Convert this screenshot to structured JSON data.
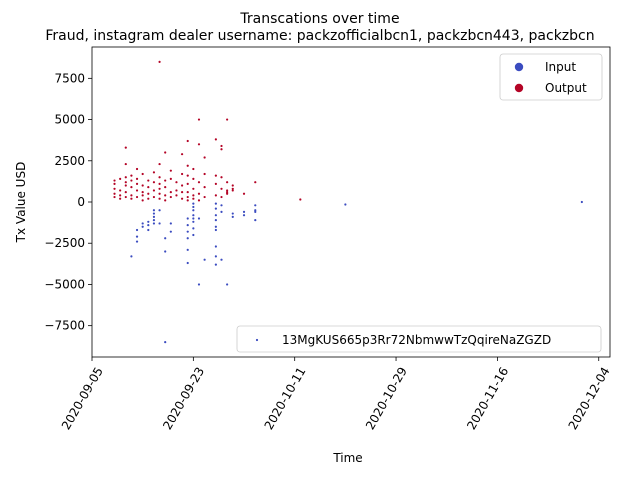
{
  "chart_data": {
    "type": "scatter",
    "title": "Transcations over time",
    "subtitle": "Fraud, instagram dealer username: packzofficialbcn1, packzbcn443, packzbcn",
    "xlabel": "Time",
    "ylabel": "Tx Value USD",
    "xlim": [
      "2020-09-05",
      "2020-12-06"
    ],
    "ylim": [
      -9400,
      9400
    ],
    "xticks": [
      "2020-09-05",
      "2020-09-23",
      "2020-10-11",
      "2020-10-29",
      "2020-11-16",
      "2020-12-04"
    ],
    "yticks": [
      -7500,
      -5000,
      -2500,
      0,
      2500,
      5000,
      7500
    ],
    "ytick_labels": [
      "−7500",
      "−5000",
      "−2500",
      "0",
      "2500",
      "5000",
      "7500"
    ],
    "legend_upper": {
      "placement": "top-right",
      "entries": [
        {
          "label": "Input",
          "color": "#3b4cc0"
        },
        {
          "label": "Output",
          "color": "#b40426"
        }
      ]
    },
    "legend_lower": {
      "placement": "bottom-right",
      "label": "13MgKUS665p3Rr72NbmwwTzQqireNaZGZD"
    },
    "colors": {
      "input": "#3b4cc0",
      "output": "#b40426"
    },
    "series": [
      {
        "name": "Output",
        "color": "#b40426",
        "points": [
          [
            "2020-09-09",
            1300
          ],
          [
            "2020-09-09",
            1100
          ],
          [
            "2020-09-09",
            800
          ],
          [
            "2020-09-09",
            500
          ],
          [
            "2020-09-09",
            300
          ],
          [
            "2020-09-10",
            1400
          ],
          [
            "2020-09-10",
            700
          ],
          [
            "2020-09-10",
            400
          ],
          [
            "2020-09-10",
            200
          ],
          [
            "2020-09-11",
            3300
          ],
          [
            "2020-09-11",
            2300
          ],
          [
            "2020-09-11",
            1500
          ],
          [
            "2020-09-11",
            1200
          ],
          [
            "2020-09-11",
            1000
          ],
          [
            "2020-09-11",
            600
          ],
          [
            "2020-09-11",
            300
          ],
          [
            "2020-09-12",
            1600
          ],
          [
            "2020-09-12",
            1300
          ],
          [
            "2020-09-12",
            900
          ],
          [
            "2020-09-12",
            400
          ],
          [
            "2020-09-12",
            200
          ],
          [
            "2020-09-13",
            2000
          ],
          [
            "2020-09-13",
            1400
          ],
          [
            "2020-09-13",
            1100
          ],
          [
            "2020-09-13",
            700
          ],
          [
            "2020-09-13",
            300
          ],
          [
            "2020-09-14",
            1700
          ],
          [
            "2020-09-14",
            1000
          ],
          [
            "2020-09-14",
            600
          ],
          [
            "2020-09-14",
            400
          ],
          [
            "2020-09-14",
            100
          ],
          [
            "2020-09-15",
            1300
          ],
          [
            "2020-09-15",
            900
          ],
          [
            "2020-09-15",
            500
          ],
          [
            "2020-09-15",
            200
          ],
          [
            "2020-09-16",
            1800
          ],
          [
            "2020-09-16",
            1200
          ],
          [
            "2020-09-16",
            700
          ],
          [
            "2020-09-16",
            300
          ],
          [
            "2020-09-17",
            8500
          ],
          [
            "2020-09-17",
            2300
          ],
          [
            "2020-09-17",
            1500
          ],
          [
            "2020-09-17",
            1100
          ],
          [
            "2020-09-17",
            800
          ],
          [
            "2020-09-17",
            500
          ],
          [
            "2020-09-17",
            200
          ],
          [
            "2020-09-18",
            3000
          ],
          [
            "2020-09-18",
            1300
          ],
          [
            "2020-09-18",
            900
          ],
          [
            "2020-09-18",
            400
          ],
          [
            "2020-09-18",
            100
          ],
          [
            "2020-09-19",
            1900
          ],
          [
            "2020-09-19",
            1400
          ],
          [
            "2020-09-19",
            600
          ],
          [
            "2020-09-19",
            300
          ],
          [
            "2020-09-20",
            1200
          ],
          [
            "2020-09-20",
            700
          ],
          [
            "2020-09-20",
            400
          ],
          [
            "2020-09-21",
            2900
          ],
          [
            "2020-09-21",
            1700
          ],
          [
            "2020-09-21",
            1000
          ],
          [
            "2020-09-21",
            600
          ],
          [
            "2020-09-21",
            200
          ],
          [
            "2020-09-22",
            3700
          ],
          [
            "2020-09-22",
            2200
          ],
          [
            "2020-09-22",
            1600
          ],
          [
            "2020-09-22",
            1100
          ],
          [
            "2020-09-22",
            600
          ],
          [
            "2020-09-22",
            300
          ],
          [
            "2020-09-22",
            100
          ],
          [
            "2020-09-23",
            2000
          ],
          [
            "2020-09-23",
            1400
          ],
          [
            "2020-09-23",
            800
          ],
          [
            "2020-09-23",
            400
          ],
          [
            "2020-09-23",
            200
          ],
          [
            "2020-09-24",
            5000
          ],
          [
            "2020-09-24",
            3500
          ],
          [
            "2020-09-24",
            1200
          ],
          [
            "2020-09-24",
            500
          ],
          [
            "2020-09-24",
            100
          ],
          [
            "2020-09-25",
            2700
          ],
          [
            "2020-09-25",
            1700
          ],
          [
            "2020-09-25",
            900
          ],
          [
            "2020-09-25",
            300
          ],
          [
            "2020-09-27",
            3800
          ],
          [
            "2020-09-27",
            1600
          ],
          [
            "2020-09-27",
            1100
          ],
          [
            "2020-09-27",
            400
          ],
          [
            "2020-09-28",
            3400
          ],
          [
            "2020-09-28",
            3200
          ],
          [
            "2020-09-28",
            1500
          ],
          [
            "2020-09-28",
            800
          ],
          [
            "2020-09-28",
            300
          ],
          [
            "2020-09-29",
            5000
          ],
          [
            "2020-09-29",
            1200
          ],
          [
            "2020-09-29",
            700
          ],
          [
            "2020-09-29",
            600
          ],
          [
            "2020-09-29",
            500
          ],
          [
            "2020-09-30",
            1000
          ],
          [
            "2020-09-30",
            800
          ],
          [
            "2020-09-30",
            700
          ],
          [
            "2020-10-02",
            500
          ],
          [
            "2020-10-04",
            1200
          ],
          [
            "2020-10-12",
            150
          ]
        ]
      },
      {
        "name": "Input",
        "color": "#3b4cc0",
        "points": [
          [
            "2020-09-12",
            -3300
          ],
          [
            "2020-09-13",
            -1700
          ],
          [
            "2020-09-13",
            -2100
          ],
          [
            "2020-09-13",
            -2400
          ],
          [
            "2020-09-14",
            -1300
          ],
          [
            "2020-09-14",
            -1500
          ],
          [
            "2020-09-15",
            -1200
          ],
          [
            "2020-09-15",
            -1400
          ],
          [
            "2020-09-15",
            -1700
          ],
          [
            "2020-09-16",
            -500
          ],
          [
            "2020-09-16",
            -700
          ],
          [
            "2020-09-16",
            -900
          ],
          [
            "2020-09-16",
            -1100
          ],
          [
            "2020-09-16",
            -1300
          ],
          [
            "2020-09-17",
            -500
          ],
          [
            "2020-09-17",
            -1300
          ],
          [
            "2020-09-18",
            -8500
          ],
          [
            "2020-09-18",
            -2200
          ],
          [
            "2020-09-18",
            -3000
          ],
          [
            "2020-09-19",
            -1300
          ],
          [
            "2020-09-19",
            -1800
          ],
          [
            "2020-09-22",
            -1000
          ],
          [
            "2020-09-22",
            -1400
          ],
          [
            "2020-09-22",
            -1800
          ],
          [
            "2020-09-22",
            -2200
          ],
          [
            "2020-09-22",
            -2900
          ],
          [
            "2020-09-22",
            -3700
          ],
          [
            "2020-09-23",
            -100
          ],
          [
            "2020-09-23",
            -300
          ],
          [
            "2020-09-23",
            -500
          ],
          [
            "2020-09-23",
            -800
          ],
          [
            "2020-09-23",
            -1000
          ],
          [
            "2020-09-23",
            -1200
          ],
          [
            "2020-09-23",
            -1600
          ],
          [
            "2020-09-23",
            -2000
          ],
          [
            "2020-09-24",
            -5000
          ],
          [
            "2020-09-24",
            -1000
          ],
          [
            "2020-09-25",
            -3500
          ],
          [
            "2020-09-27",
            -100
          ],
          [
            "2020-09-27",
            -400
          ],
          [
            "2020-09-27",
            -800
          ],
          [
            "2020-09-27",
            -1100
          ],
          [
            "2020-09-27",
            -1500
          ],
          [
            "2020-09-27",
            -1700
          ],
          [
            "2020-09-27",
            -2700
          ],
          [
            "2020-09-27",
            -3300
          ],
          [
            "2020-09-27",
            -3800
          ],
          [
            "2020-09-28",
            -200
          ],
          [
            "2020-09-28",
            -600
          ],
          [
            "2020-09-28",
            -3500
          ],
          [
            "2020-09-29",
            -5000
          ],
          [
            "2020-09-30",
            -700
          ],
          [
            "2020-09-30",
            -900
          ],
          [
            "2020-10-02",
            -600
          ],
          [
            "2020-10-02",
            -800
          ],
          [
            "2020-10-04",
            -200
          ],
          [
            "2020-10-04",
            -500
          ],
          [
            "2020-10-04",
            -600
          ],
          [
            "2020-10-04",
            -1100
          ],
          [
            "2020-10-20",
            -150
          ],
          [
            "2020-12-01",
            0
          ]
        ]
      }
    ]
  }
}
